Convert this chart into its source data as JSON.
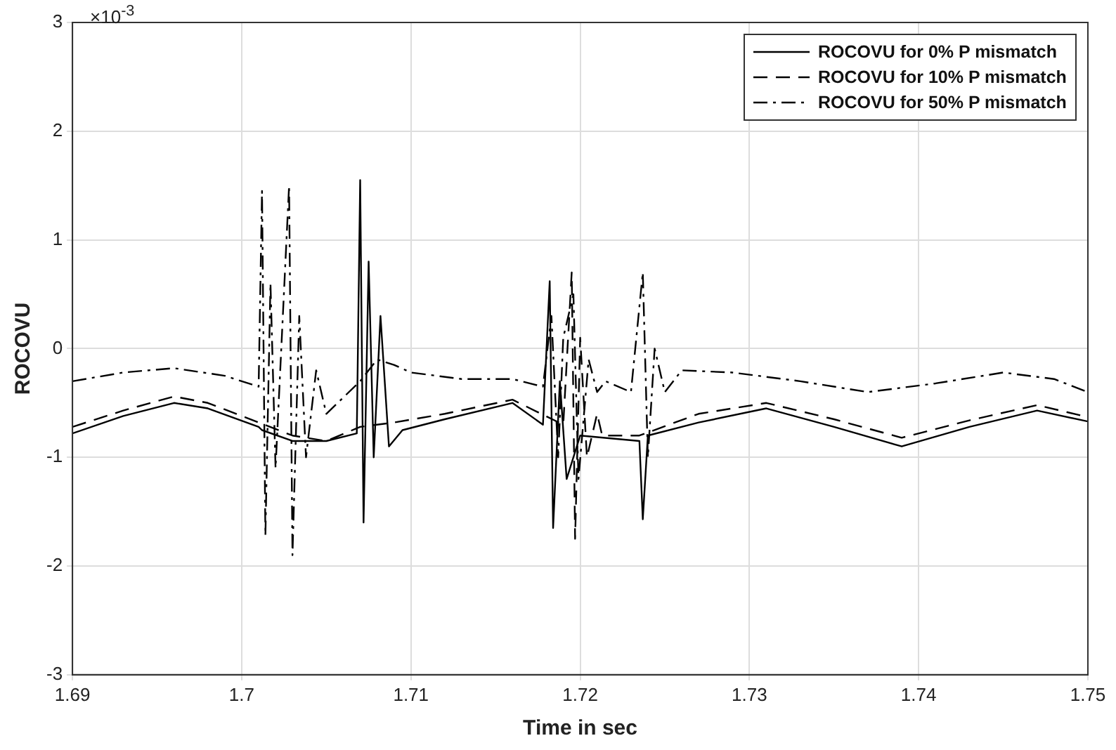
{
  "chart_data": {
    "type": "line",
    "xlabel": "Time in sec",
    "ylabel": "ROCOVU",
    "annotations": [
      "×10$^{-3}$"
    ],
    "xlim": [
      1.69,
      1.75
    ],
    "xticks": [
      1.69,
      1.7,
      1.71,
      1.72,
      1.73,
      1.74,
      1.75
    ],
    "ylim": [
      -3,
      3
    ],
    "yticks": [
      -3,
      -2,
      -1,
      0,
      1,
      2,
      3
    ],
    "grid": true,
    "legend": "top right",
    "marker": "none",
    "series": [
      {
        "name": "ROCOVU for 0% P mismatch",
        "color": "#000000",
        "line_style": "solid",
        "x": [
          1.69,
          1.693,
          1.696,
          1.698,
          1.701,
          1.7012,
          1.703,
          1.705,
          1.7068,
          1.707,
          1.7072,
          1.7075,
          1.7078,
          1.7082,
          1.7087,
          1.7095,
          1.712,
          1.716,
          1.7178,
          1.7182,
          1.7184,
          1.7188,
          1.7192,
          1.72,
          1.7235,
          1.7237,
          1.724,
          1.727,
          1.731,
          1.735,
          1.739,
          1.743,
          1.747,
          1.75
        ],
        "values": [
          -0.78,
          -0.62,
          -0.5,
          -0.55,
          -0.72,
          -0.75,
          -0.85,
          -0.85,
          -0.78,
          1.55,
          -1.6,
          0.8,
          -1.0,
          0.3,
          -0.9,
          -0.75,
          -0.65,
          -0.5,
          -0.7,
          0.62,
          -1.65,
          -0.3,
          -1.2,
          -0.8,
          -0.85,
          -1.57,
          -0.8,
          -0.68,
          -0.55,
          -0.72,
          -0.9,
          -0.72,
          -0.57,
          -0.67
        ]
      },
      {
        "name": "ROCOVU for 10% P mismatch",
        "color": "#000000",
        "line_style": "dashed",
        "x": [
          1.69,
          1.693,
          1.696,
          1.698,
          1.701,
          1.703,
          1.705,
          1.707,
          1.709,
          1.712,
          1.716,
          1.719,
          1.7195,
          1.7197,
          1.72,
          1.7204,
          1.721,
          1.7213,
          1.7235,
          1.727,
          1.731,
          1.735,
          1.739,
          1.743,
          1.747,
          1.75
        ],
        "values": [
          -0.72,
          -0.57,
          -0.44,
          -0.5,
          -0.68,
          -0.8,
          -0.85,
          -0.72,
          -0.68,
          -0.6,
          -0.47,
          -0.7,
          0.7,
          -1.75,
          0.1,
          -1.0,
          -0.6,
          -0.8,
          -0.8,
          -0.6,
          -0.5,
          -0.65,
          -0.82,
          -0.66,
          -0.52,
          -0.63
        ]
      },
      {
        "name": "ROCOVU for 50% P mismatch",
        "color": "#000000",
        "line_style": "dashdot",
        "x": [
          1.69,
          1.693,
          1.696,
          1.699,
          1.701,
          1.7012,
          1.7014,
          1.7017,
          1.702,
          1.7024,
          1.7028,
          1.703,
          1.7034,
          1.7038,
          1.7044,
          1.705,
          1.706,
          1.707,
          1.708,
          1.709,
          1.71,
          1.713,
          1.716,
          1.7178,
          1.7183,
          1.7187,
          1.719,
          1.7196,
          1.7199,
          1.7205,
          1.721,
          1.7215,
          1.723,
          1.7237,
          1.724,
          1.7244,
          1.725,
          1.726,
          1.729,
          1.733,
          1.737,
          1.741,
          1.745,
          1.748,
          1.75
        ],
        "values": [
          -0.3,
          -0.22,
          -0.18,
          -0.25,
          -0.35,
          1.45,
          -1.72,
          0.6,
          -1.1,
          0.2,
          1.5,
          -1.9,
          0.3,
          -1.0,
          -0.2,
          -0.6,
          -0.45,
          -0.3,
          -0.1,
          -0.15,
          -0.22,
          -0.28,
          -0.28,
          -0.35,
          0.3,
          -1.0,
          0.1,
          0.5,
          -1.2,
          -0.1,
          -0.4,
          -0.3,
          -0.4,
          0.7,
          -1.0,
          0.0,
          -0.4,
          -0.2,
          -0.22,
          -0.3,
          -0.4,
          -0.32,
          -0.22,
          -0.28,
          -0.4
        ]
      }
    ]
  }
}
